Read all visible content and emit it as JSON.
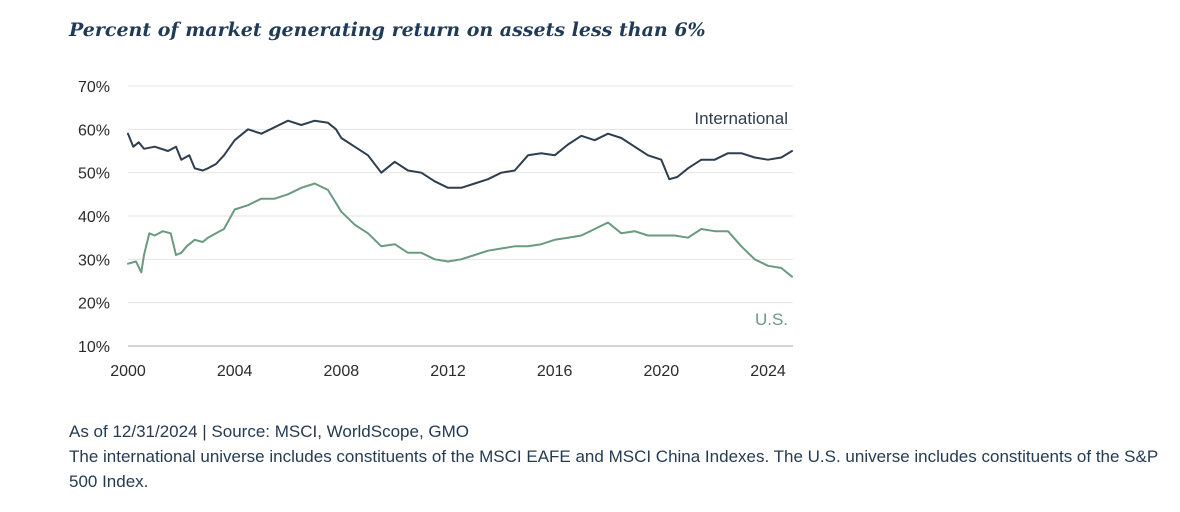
{
  "chart_data": {
    "type": "line",
    "title": "Percent of market generating return on assets less than 6%",
    "xlabel": "",
    "ylabel": "",
    "xlim": [
      2000,
      2025
    ],
    "ylim": [
      10,
      70
    ],
    "x_ticks": [
      "2000",
      "2004",
      "2008",
      "2012",
      "2016",
      "2020",
      "2024"
    ],
    "y_ticks": [
      "10%",
      "20%",
      "30%",
      "40%",
      "50%",
      "60%",
      "70%"
    ],
    "grid": "horizontal",
    "colors": {
      "International": "#2e3e4e",
      "U.S.": "#6a9a80"
    },
    "series": [
      {
        "name": "International",
        "x": [
          2000.0,
          2000.2,
          2000.4,
          2000.6,
          2001.0,
          2001.5,
          2001.8,
          2002.0,
          2002.3,
          2002.5,
          2002.8,
          2003.0,
          2003.3,
          2003.6,
          2004.0,
          2004.5,
          2005.0,
          2005.5,
          2006.0,
          2006.5,
          2007.0,
          2007.5,
          2007.8,
          2008.0,
          2008.5,
          2009.0,
          2009.5,
          2010.0,
          2010.5,
          2011.0,
          2011.5,
          2012.0,
          2012.5,
          2013.0,
          2013.5,
          2014.0,
          2014.5,
          2015.0,
          2015.5,
          2016.0,
          2016.5,
          2017.0,
          2017.5,
          2018.0,
          2018.5,
          2019.0,
          2019.5,
          2020.0,
          2020.3,
          2020.6,
          2021.0,
          2021.5,
          2022.0,
          2022.5,
          2023.0,
          2023.5,
          2024.0,
          2024.5,
          2024.9
        ],
        "values": [
          59,
          56,
          57,
          55.5,
          56,
          55,
          56,
          53,
          54,
          51,
          50.5,
          51,
          52,
          54,
          57.5,
          60,
          59,
          60.5,
          62,
          61,
          62,
          61.5,
          60,
          58,
          56,
          54,
          50,
          52.5,
          50.5,
          50,
          48,
          46.5,
          46.5,
          47.5,
          48.5,
          50,
          50.5,
          54,
          54.5,
          54,
          56.5,
          58.5,
          57.5,
          59,
          58,
          56,
          54,
          53,
          48.5,
          49,
          51,
          53,
          53,
          54.5,
          54.5,
          53.5,
          53,
          53.5,
          55
        ]
      },
      {
        "name": "U.S.",
        "x": [
          2000.0,
          2000.3,
          2000.5,
          2000.6,
          2000.8,
          2001.0,
          2001.3,
          2001.6,
          2001.8,
          2002.0,
          2002.2,
          2002.5,
          2002.8,
          2003.0,
          2003.3,
          2003.6,
          2004.0,
          2004.5,
          2005.0,
          2005.5,
          2006.0,
          2006.5,
          2007.0,
          2007.5,
          2008.0,
          2008.5,
          2009.0,
          2009.5,
          2010.0,
          2010.5,
          2011.0,
          2011.5,
          2012.0,
          2012.5,
          2013.0,
          2013.5,
          2014.0,
          2014.5,
          2015.0,
          2015.5,
          2016.0,
          2016.5,
          2017.0,
          2017.5,
          2018.0,
          2018.5,
          2019.0,
          2019.5,
          2020.0,
          2020.5,
          2021.0,
          2021.5,
          2022.0,
          2022.5,
          2023.0,
          2023.5,
          2024.0,
          2024.5,
          2024.9
        ],
        "values": [
          29,
          29.5,
          27,
          31,
          36,
          35.5,
          36.5,
          36,
          31,
          31.5,
          33,
          34.5,
          34,
          35,
          36,
          37,
          41.5,
          42.5,
          44,
          44,
          45,
          46.5,
          47.5,
          46,
          41,
          38,
          36,
          33,
          33.5,
          31.5,
          31.5,
          30,
          29.5,
          30,
          31,
          32,
          32.5,
          33,
          33,
          33.5,
          34.5,
          35,
          35.5,
          37,
          38.5,
          36,
          36.5,
          35.5,
          35.5,
          35.5,
          35,
          37,
          36.5,
          36.5,
          33,
          30,
          28.5,
          28,
          26
        ]
      }
    ],
    "annotations": [
      "International",
      "U.S."
    ]
  },
  "footer": {
    "source": "As of 12/31/2024 | Source: MSCI, WorldScope, GMO",
    "note": "The international universe includes constituents of the MSCI EAFE and MSCI China Indexes. The U.S. universe includes constituents of the S&P 500 Index."
  }
}
